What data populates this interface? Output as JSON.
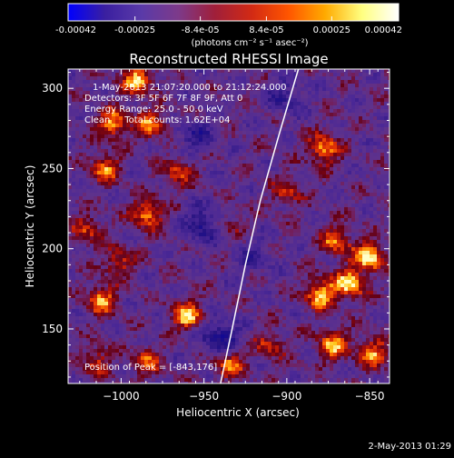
{
  "colorbar": {
    "tick_labels": [
      "-0.00042",
      "-0.00025",
      "-8.4e-05",
      "8.4e-05",
      "0.00025",
      "0.00042"
    ],
    "ticks": [
      -0.00042,
      -0.00025,
      -8.4e-05,
      8.4e-05,
      0.00025,
      0.00042
    ],
    "range": [
      -0.00042,
      0.00042
    ],
    "units_label": "(photons cm⁻² s⁻¹ asec⁻²)",
    "colors": [
      "#0000ff",
      "#3a1fa0",
      "#5a3aa8",
      "#7d3a8a",
      "#a01f3a",
      "#d22a14",
      "#ff5500",
      "#ffaa00",
      "#ffff80",
      "#ffffff"
    ]
  },
  "chart_data": {
    "type": "heatmap",
    "title": "Reconstructed RHESSI Image",
    "xlabel": "Heliocentric X (arcsec)",
    "ylabel": "Heliocentric Y (arcsec)",
    "xlim": [
      -1032,
      -838
    ],
    "ylim": [
      116,
      312
    ],
    "x_ticks": [
      -1000,
      -950,
      -900,
      -850
    ],
    "x_tick_labels": [
      "−1000",
      "−950",
      "−900",
      "−850"
    ],
    "y_ticks": [
      150,
      200,
      250,
      300
    ],
    "y_tick_labels": [
      "150",
      "200",
      "250",
      "300"
    ],
    "peak": [
      -843,
      176
    ],
    "limb_curve": [
      [
        -940,
        116
      ],
      [
        -933,
        150
      ],
      [
        -925,
        190
      ],
      [
        -916,
        230
      ],
      [
        -905,
        270
      ],
      [
        -893,
        312
      ]
    ],
    "hot_spots": [
      {
        "x": -1005,
        "y": 278,
        "amp": 0.85
      },
      {
        "x": -982,
        "y": 278,
        "amp": 0.7
      },
      {
        "x": -1010,
        "y": 250,
        "amp": 0.7
      },
      {
        "x": -965,
        "y": 248,
        "amp": 0.6
      },
      {
        "x": -984,
        "y": 222,
        "amp": 0.85
      },
      {
        "x": -1020,
        "y": 212,
        "amp": 0.55
      },
      {
        "x": -1002,
        "y": 192,
        "amp": 0.6
      },
      {
        "x": -1012,
        "y": 168,
        "amp": 0.8
      },
      {
        "x": -960,
        "y": 158,
        "amp": 0.9
      },
      {
        "x": -935,
        "y": 128,
        "amp": 0.7
      },
      {
        "x": -985,
        "y": 130,
        "amp": 0.6
      },
      {
        "x": -878,
        "y": 262,
        "amp": 0.85
      },
      {
        "x": -900,
        "y": 235,
        "amp": 0.5
      },
      {
        "x": -870,
        "y": 205,
        "amp": 0.7
      },
      {
        "x": -850,
        "y": 195,
        "amp": 1.0
      },
      {
        "x": -862,
        "y": 178,
        "amp": 0.95
      },
      {
        "x": -880,
        "y": 172,
        "amp": 0.9
      },
      {
        "x": -872,
        "y": 140,
        "amp": 0.8
      },
      {
        "x": -848,
        "y": 135,
        "amp": 0.75
      },
      {
        "x": -910,
        "y": 140,
        "amp": 0.5
      },
      {
        "x": -1015,
        "y": 130,
        "amp": 0.55
      },
      {
        "x": -935,
        "y": 215,
        "amp": 0.35
      },
      {
        "x": -990,
        "y": 305,
        "amp": 0.9
      }
    ],
    "cold_spots": [
      {
        "x": -950,
        "y": 215,
        "amp": 0.7
      },
      {
        "x": -940,
        "y": 145,
        "amp": 0.8
      },
      {
        "x": -955,
        "y": 270,
        "amp": 0.5
      },
      {
        "x": -900,
        "y": 295,
        "amp": 0.5
      },
      {
        "x": -920,
        "y": 195,
        "amp": 0.4
      }
    ]
  },
  "annotations": {
    "line1": "1-May-2013 21:07:20.000 to 21:12:24.000",
    "line2": "Detectors: 3F 5F 6F 7F 8F 9F, Att 0",
    "line3": "Energy Range: 25.0 - 50.0 keV",
    "line4": "Clean     Total counts: 1.62E+04",
    "peak_text": "Position of Peak = [-843,176]"
  },
  "timestamp": "2-May-2013 01:29"
}
